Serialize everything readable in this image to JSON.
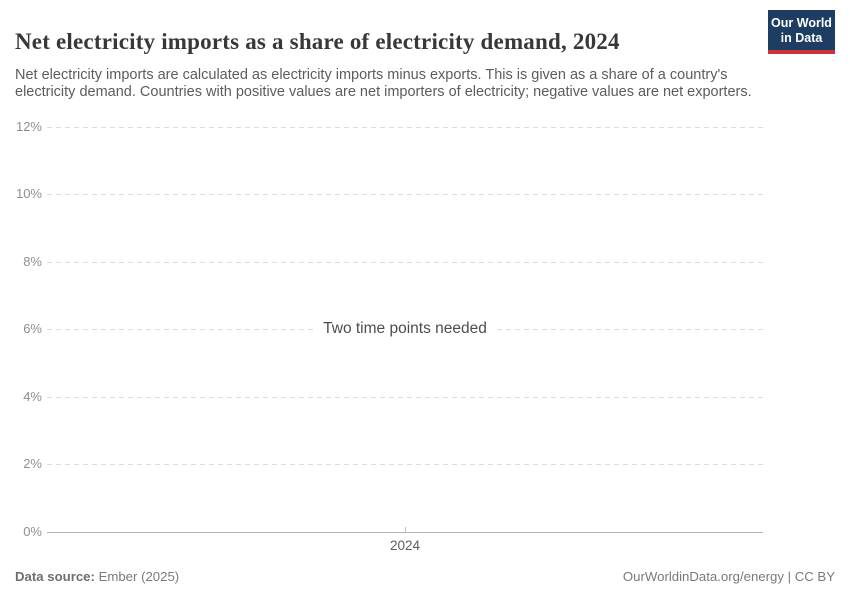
{
  "header": {
    "title": "Net electricity imports as a share of electricity demand, 2024",
    "subtitle": "Net electricity imports are calculated as electricity imports minus exports. This is given as a share of a country's electricity demand. Countries with positive values are net importers of electricity; negative values are net exporters.",
    "logo": {
      "line1": "Our World",
      "line2": "in Data"
    }
  },
  "chart_data": {
    "type": "line",
    "title": "Net electricity imports as a share of electricity demand, 2024",
    "series": [],
    "empty_state_message": "Two time points needed",
    "ylim": [
      0,
      12
    ],
    "y_unit": "%",
    "y_tick_labels_top_to_bottom": [
      "12%",
      "10%",
      "8%",
      "6%",
      "4%",
      "2%",
      "0%"
    ],
    "x_tick_labels": [
      "2024"
    ],
    "grid": "horizontal dashed",
    "legend": "none"
  },
  "footer": {
    "data_source_label": "Data source:",
    "data_source_value": "Ember (2025)",
    "attribution": "OurWorldinData.org/energy | CC BY"
  },
  "colors": {
    "logo_background": "#1d3d63",
    "logo_accent": "#cd3235",
    "gridline": "#dcdcdc",
    "axis_line": "#b0b0b0",
    "title_text": "#383838",
    "subtitle_text": "#5c5c5c",
    "tick_label_text": "#8f8f8f"
  }
}
